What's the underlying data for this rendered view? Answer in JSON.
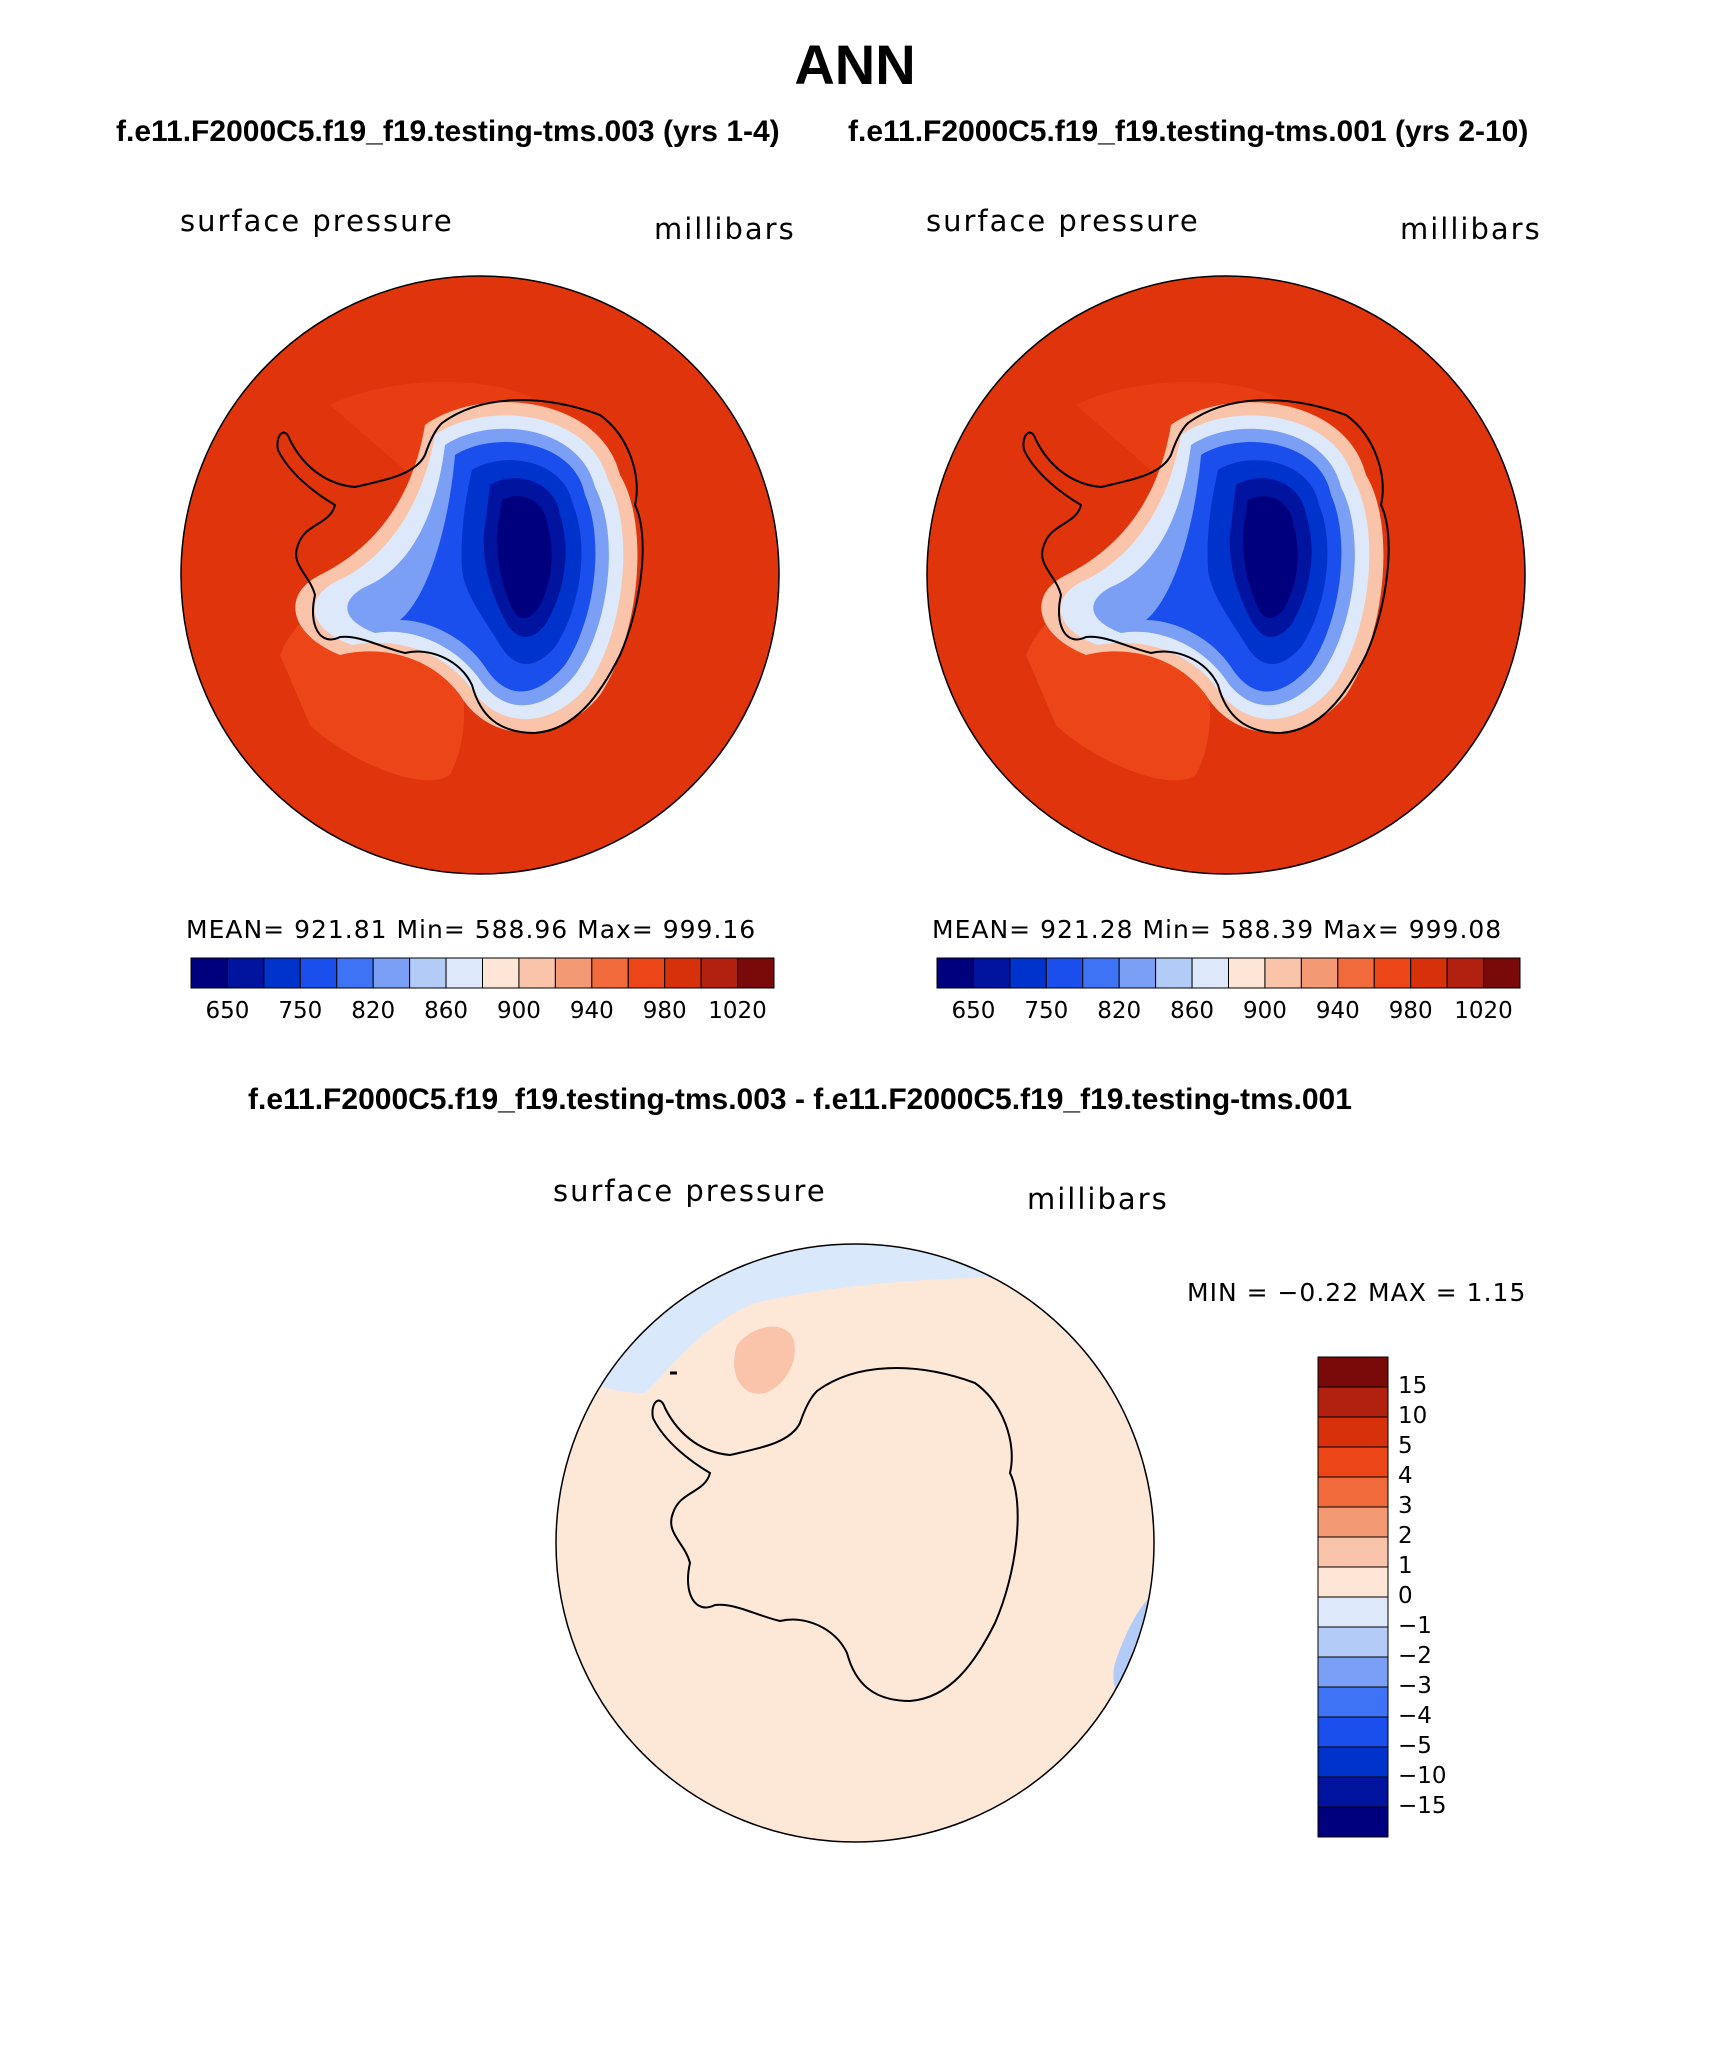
{
  "title": "ANN",
  "case_a_header": "f.e11.F2000C5.f19_f19.testing-tms.003 (yrs 1-4)",
  "case_b_header": "f.e11.F2000C5.f19_f19.testing-tms.001 (yrs 2-10)",
  "diff_header": "f.e11.F2000C5.f19_f19.testing-tms.003 - f.e11.F2000C5.f19_f19.testing-tms.001",
  "panels": [
    {
      "variable": "surface pressure",
      "units": "millibars",
      "stats": "MEAN= 921.81   Min= 588.96   Max= 999.16",
      "colorbar_labels": [
        "650",
        "750",
        "820",
        "860",
        "900",
        "940",
        "980",
        "1020"
      ]
    },
    {
      "variable": "surface pressure",
      "units": "millibars",
      "stats": "MEAN= 921.28   Min= 588.39   Max= 999.08",
      "colorbar_labels": [
        "650",
        "750",
        "820",
        "860",
        "900",
        "940",
        "980",
        "1020"
      ]
    }
  ],
  "diff_panel": {
    "variable": "surface pressure",
    "units": "millibars",
    "stats": "MIN =   −0.22  MAX =    1.15",
    "colorbar_labels": [
      "15",
      "10",
      "5",
      "4",
      "3",
      "2",
      "1",
      "0",
      "−1",
      "−2",
      "−3",
      "−4",
      "−5",
      "−10",
      "−15"
    ]
  },
  "colors": {
    "field_ocean": "#e0340d",
    "bar16": [
      "#00007f",
      "#0014a0",
      "#0033cc",
      "#1a4fee",
      "#3f73f5",
      "#7a9ff5",
      "#b3ccf7",
      "#dde9fb",
      "#fde6d6",
      "#f9c4a9",
      "#f39a74",
      "#f06a3c",
      "#ec4518",
      "#d7310b",
      "#b22010",
      "#7a0a0a"
    ],
    "diff_bg": "#fde8d8",
    "diff_neg1": "#d9e8fa",
    "diff_pos1": "#f9c4a9"
  }
}
